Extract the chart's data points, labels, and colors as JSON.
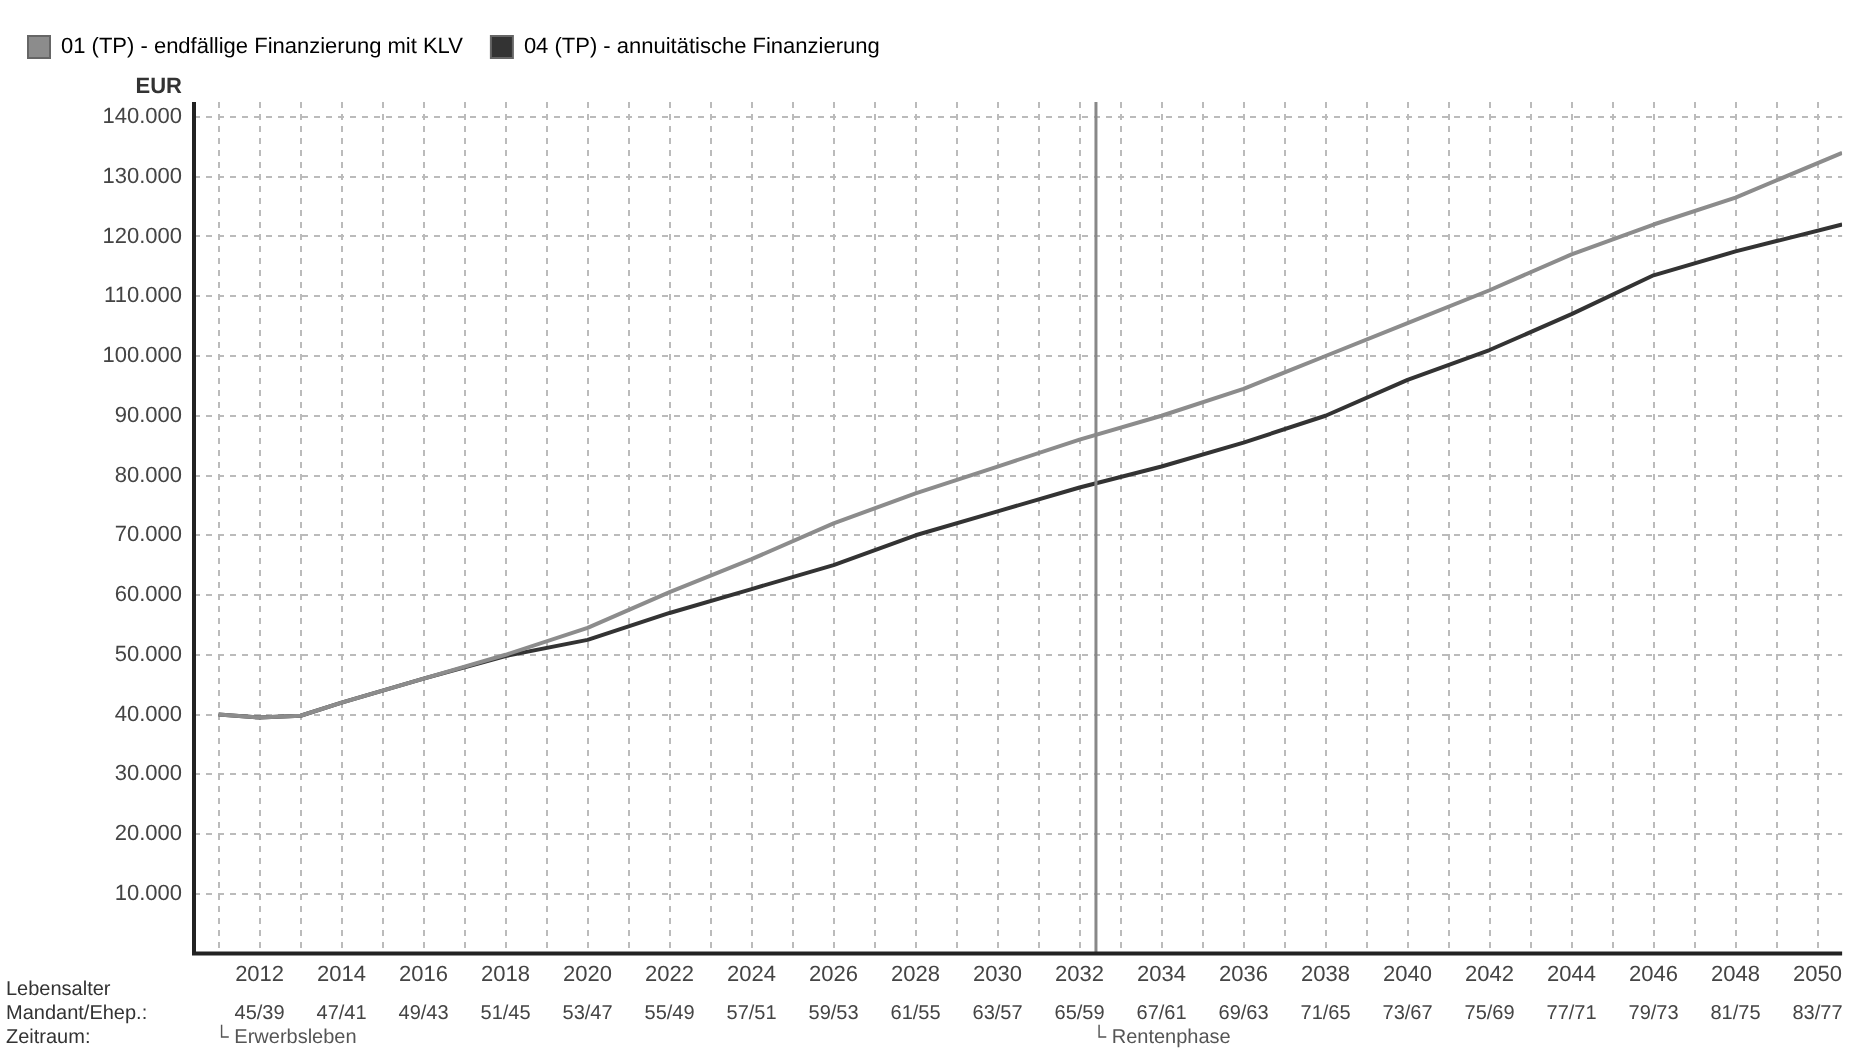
{
  "chart_data": {
    "type": "line",
    "ylabel": "EUR",
    "legend": "top",
    "grid": true,
    "marker": "none",
    "line_style": "solid",
    "xlim": [
      2010.4,
      2050.6
    ],
    "ylim": [
      0,
      142500
    ],
    "xticks": [
      {
        "value": 2011,
        "label": null
      },
      2012,
      {
        "value": 2013,
        "label": null
      },
      2014,
      {
        "value": 2015,
        "label": null
      },
      2016,
      {
        "value": 2017,
        "label": null
      },
      2018,
      {
        "value": 2019,
        "label": null
      },
      2020,
      {
        "value": 2021,
        "label": null
      },
      2022,
      {
        "value": 2023,
        "label": null
      },
      2024,
      {
        "value": 2025,
        "label": null
      },
      2026,
      {
        "value": 2027,
        "label": null
      },
      2028,
      {
        "value": 2029,
        "label": null
      },
      2030,
      {
        "value": 2031,
        "label": null
      },
      2032,
      {
        "value": 2033,
        "label": null
      },
      2034,
      {
        "value": 2035,
        "label": null
      },
      2036,
      {
        "value": 2037,
        "label": null
      },
      2038,
      {
        "value": 2039,
        "label": null
      },
      2040,
      {
        "value": 2041,
        "label": null
      },
      2042,
      {
        "value": 2043,
        "label": null
      },
      2044,
      {
        "value": 2045,
        "label": null
      },
      2046,
      {
        "value": 2047,
        "label": null
      },
      2048,
      {
        "value": 2049,
        "label": null
      },
      2050
    ],
    "yticks": [
      {
        "value": 10000,
        "label": "10.000"
      },
      {
        "value": 20000,
        "label": "20.000"
      },
      {
        "value": 30000,
        "label": "30.000"
      },
      {
        "value": 40000,
        "label": "40.000"
      },
      {
        "value": 50000,
        "label": "50.000"
      },
      {
        "value": 60000,
        "label": "60.000"
      },
      {
        "value": 70000,
        "label": "70.000"
      },
      {
        "value": 80000,
        "label": "80.000"
      },
      {
        "value": 90000,
        "label": "90.000"
      },
      {
        "value": 100000,
        "label": "100.000"
      },
      {
        "value": 110000,
        "label": "110.000"
      },
      {
        "value": 120000,
        "label": "120.000"
      },
      {
        "value": 130000,
        "label": "130.000"
      },
      {
        "value": 140000,
        "label": "140.000"
      }
    ],
    "x": [
      2011,
      2012,
      2013,
      2014,
      2016,
      2018,
      2020,
      2022,
      2024,
      2026,
      2028,
      2030,
      2032,
      2034,
      2036,
      2038,
      2040,
      2042,
      2044,
      2046,
      2048,
      2050.6
    ],
    "series": [
      {
        "name": "01 (TP) - endfällige Finanzierung mit KLV",
        "color": "#8c8c8c",
        "values": [
          40000,
          39500,
          39800,
          42000,
          46000,
          50000,
          54500,
          60500,
          66000,
          72000,
          77000,
          81500,
          86000,
          90000,
          94500,
          100000,
          105500,
          111000,
          117000,
          122000,
          126500,
          134000
        ]
      },
      {
        "name": "04 (TP) - annuitätische Finanzierung",
        "color": "#333333",
        "values": [
          40000,
          39500,
          39800,
          42000,
          46000,
          49800,
          52500,
          57000,
          61000,
          65000,
          70000,
          74000,
          78000,
          81500,
          85500,
          90000,
          96000,
          101000,
          107000,
          113500,
          117500,
          122000
        ]
      }
    ],
    "ref_lines": [
      {
        "axis": "x",
        "value": 2032.4,
        "color": "#888888"
      }
    ],
    "annotations": [
      "Lebensalter",
      "Mandant/Ehep.:",
      "Zeitraum:",
      "└ Erwerbsleben",
      "└ Rentenphase",
      "45/39",
      "47/41",
      "49/43",
      "51/45",
      "53/47",
      "55/49",
      "57/51",
      "59/53",
      "61/55",
      "63/57",
      "65/59",
      "67/61",
      "69/63",
      "71/65",
      "73/67",
      "75/69",
      "77/71",
      "79/73",
      "81/75",
      "83/77"
    ]
  }
}
